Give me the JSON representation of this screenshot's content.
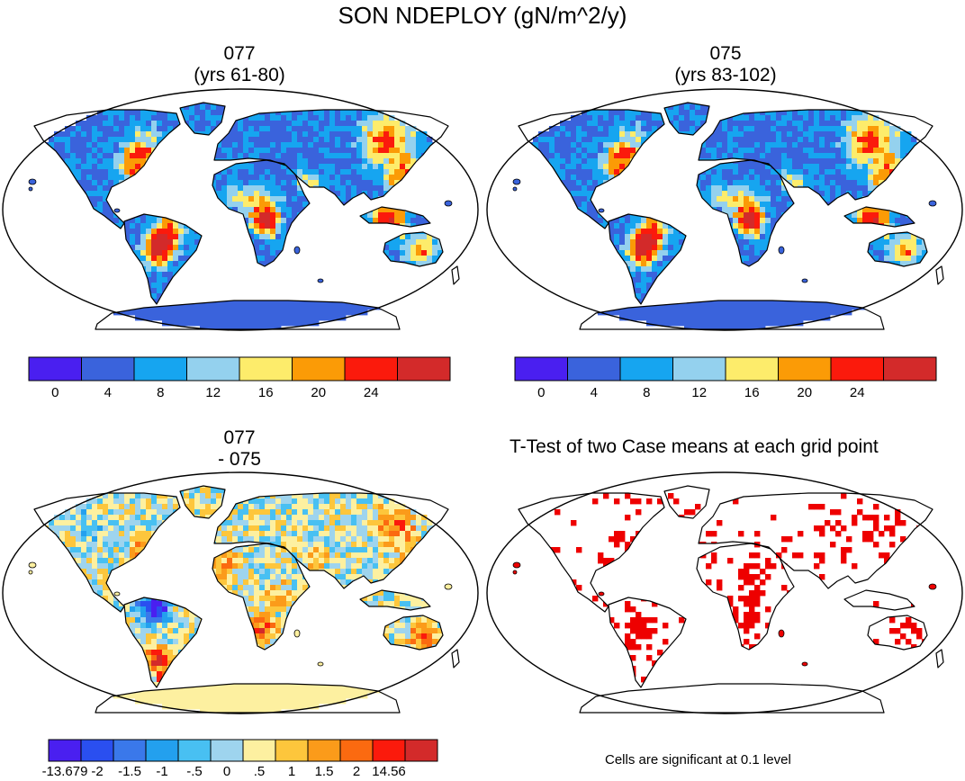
{
  "figure": {
    "title": "SON NDEPLOY (gN/m^2/y)"
  },
  "panels": {
    "case_a": {
      "name": "077",
      "subtitle": "(yrs 61-80)"
    },
    "case_b": {
      "name": "075",
      "subtitle": "(yrs 83-102)"
    },
    "difference": {
      "line1": "077",
      "line2": "- 075"
    },
    "ttest": {
      "title": "T-Test of two Case means at each grid point",
      "note": "Cells are significant at 0.1 level"
    }
  },
  "colorbars": {
    "main": {
      "colors": [
        "#4a1ff0",
        "#3a63dc",
        "#16a5f0",
        "#94d1ee",
        "#fdec6b",
        "#fb9b06",
        "#fb1a0c",
        "#d32a2a"
      ],
      "labels": [
        "0",
        "4",
        "8",
        "12",
        "16",
        "20",
        "24"
      ]
    },
    "diff": {
      "colors": [
        "#4a1ff0",
        "#2a4ff0",
        "#3a78ea",
        "#23a0ee",
        "#48c0f2",
        "#9ed4ee",
        "#fdf0a0",
        "#fdc63c",
        "#fb9b1a",
        "#fb6a10",
        "#fb1a0c",
        "#d32a2a"
      ],
      "labels": [
        "-13.679",
        "-2",
        "-1.5",
        "-1",
        "-.5",
        "0",
        ".5",
        "1",
        "1.5",
        "2",
        "14.56"
      ]
    }
  },
  "colors": {
    "ocean": "#ffffff",
    "coastline": "#000000",
    "antarctica_main": "#3a63dc",
    "antarctica_diff": "#fdf0a0",
    "significant": "#ee0000"
  }
}
